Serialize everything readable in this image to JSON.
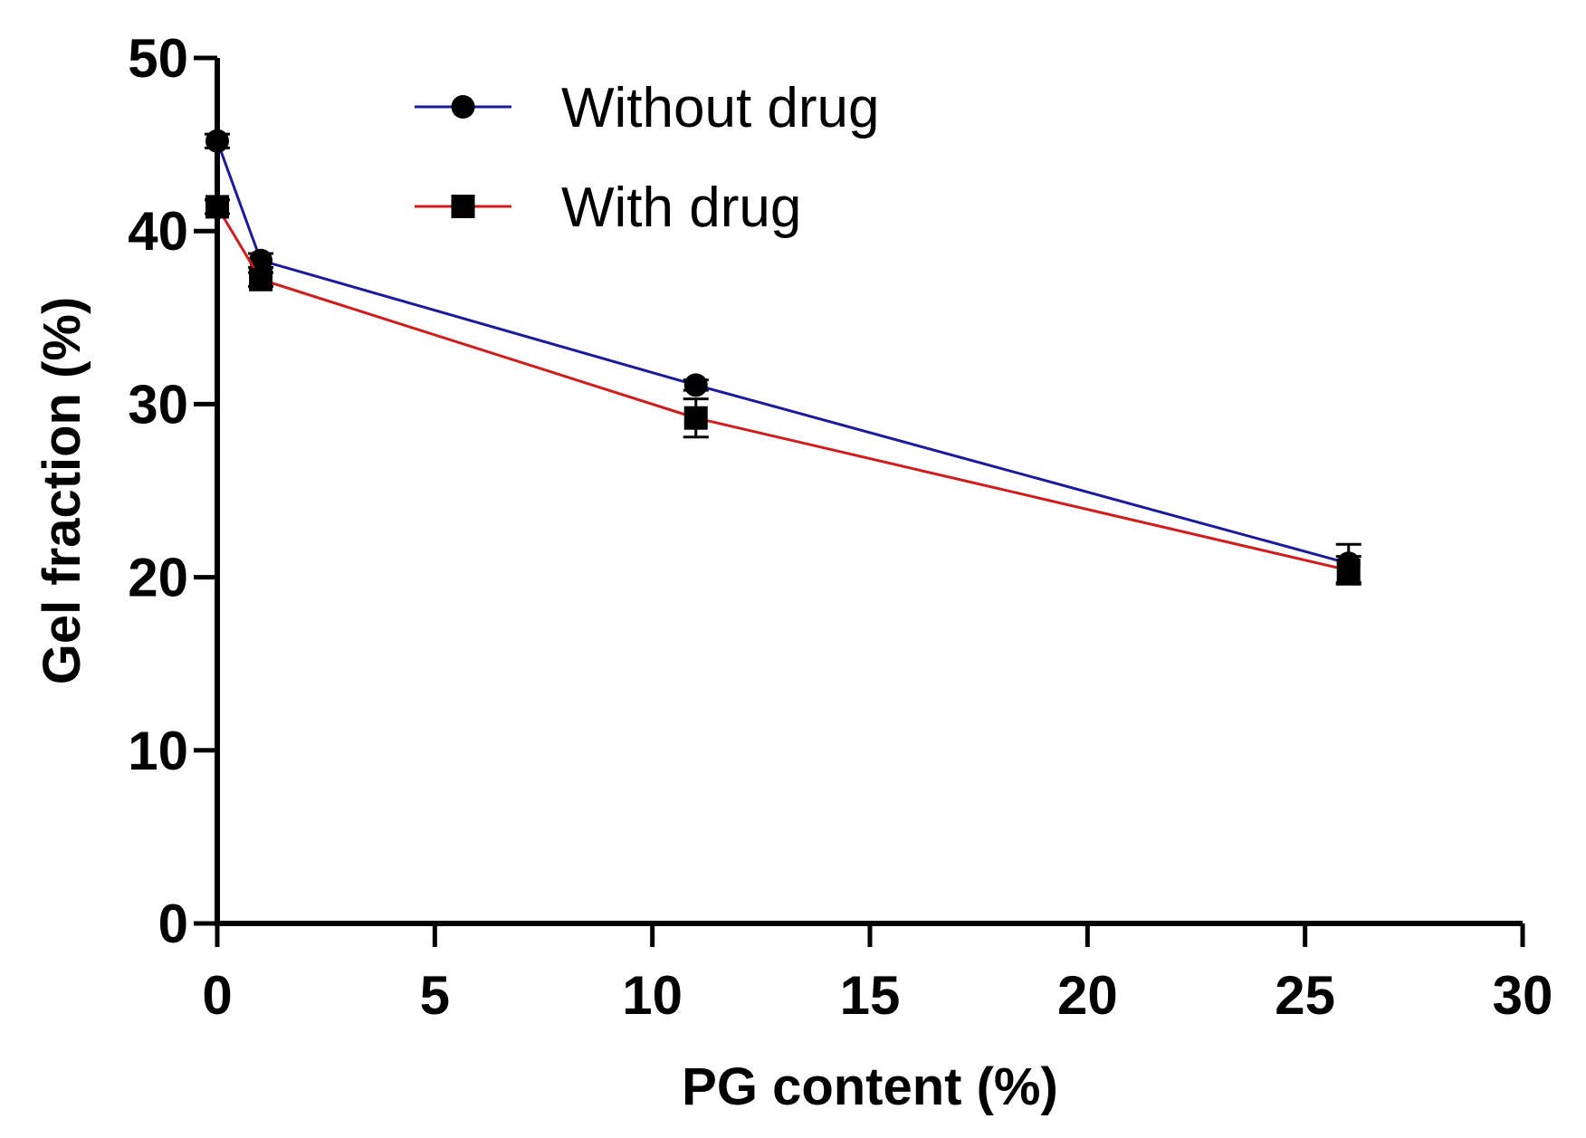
{
  "chart_data": {
    "type": "line",
    "title": "",
    "xlabel": "PG content (%)",
    "ylabel": "Gel fraction (%)",
    "xlim": [
      0,
      30
    ],
    "ylim": [
      0,
      50
    ],
    "xticks": [
      "0",
      "5",
      "10",
      "15",
      "20",
      "25",
      "30"
    ],
    "yticks": [
      "0",
      "10",
      "20",
      "30",
      "40",
      "50"
    ],
    "grid": false,
    "legend_position": "top-left",
    "series": [
      {
        "name": "Without drug",
        "color": "#1a1a9c",
        "marker": "circle",
        "x": [
          0,
          1,
          11,
          26
        ],
        "y": [
          45.2,
          38.3,
          31.1,
          20.8
        ],
        "error": [
          0.4,
          0.4,
          0.3,
          1.1
        ]
      },
      {
        "name": "With drug",
        "color": "#d01c1c",
        "marker": "square",
        "x": [
          0,
          1,
          11,
          26
        ],
        "y": [
          41.4,
          37.2,
          29.2,
          20.4
        ],
        "error": [
          0.4,
          0.4,
          1.1,
          0.8
        ]
      }
    ]
  }
}
